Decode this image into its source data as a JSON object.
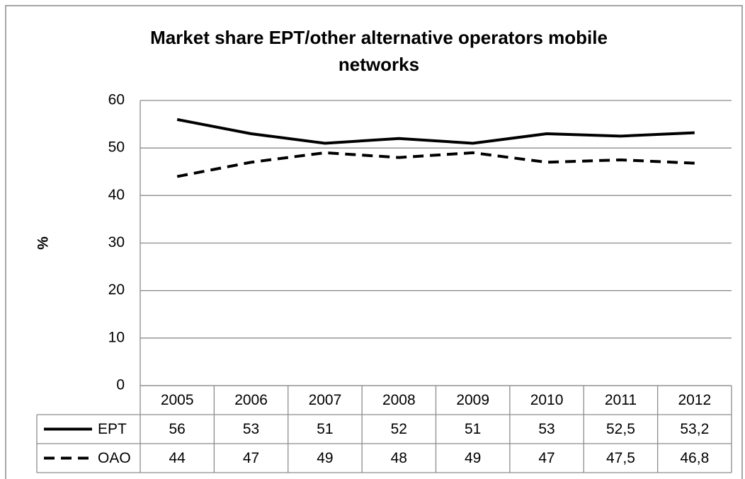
{
  "chart_data": {
    "type": "line",
    "title": "Market share EPT/other alternative operators mobile networks",
    "y_label": "%",
    "categories": [
      "2005",
      "2006",
      "2007",
      "2008",
      "2009",
      "2010",
      "2011",
      "2012"
    ],
    "series": [
      {
        "name": "EPT",
        "color": "#000000",
        "dash": "solid",
        "values": [
          56,
          53,
          51,
          52,
          51,
          53,
          52.5,
          53.2
        ],
        "value_labels": [
          "56",
          "53",
          "51",
          "52",
          "51",
          "53",
          "52,5",
          "53,2"
        ]
      },
      {
        "name": "OAO",
        "color": "#000000",
        "dash": "dashed",
        "values": [
          44,
          47,
          49,
          48,
          49,
          47,
          47.5,
          46.8
        ],
        "value_labels": [
          "44",
          "47",
          "49",
          "48",
          "49",
          "47",
          "47,5",
          "46,8"
        ]
      }
    ],
    "ylim": [
      0,
      60
    ],
    "yticks": [
      0,
      10,
      20,
      30,
      40,
      50,
      60
    ],
    "grid": true,
    "data_table": true
  }
}
